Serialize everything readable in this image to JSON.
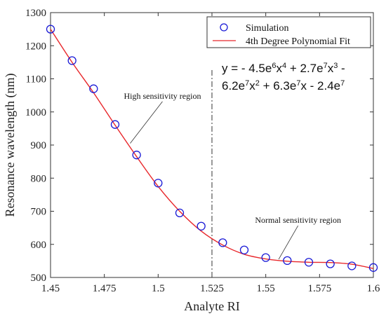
{
  "chart_data": {
    "type": "scatter",
    "xlabel": "Analyte RI",
    "ylabel": "Resonance wavelength (nm)",
    "xlim": [
      1.45,
      1.6
    ],
    "ylim": [
      500,
      1300
    ],
    "x_ticks": [
      1.45,
      1.475,
      1.5,
      1.525,
      1.55,
      1.575,
      1.6
    ],
    "x_tick_labels": [
      "1.45",
      "1.475",
      "1.5",
      "1.525",
      "1.55",
      "1.575",
      "1.6"
    ],
    "y_ticks": [
      500,
      600,
      700,
      800,
      900,
      1000,
      1100,
      1200,
      1300
    ],
    "y_tick_labels": [
      "500",
      "600",
      "700",
      "800",
      "900",
      "1000",
      "1100",
      "1200",
      "1300"
    ],
    "grid": false,
    "legend_position": "top-right",
    "series": [
      {
        "name": "Simulation",
        "kind": "scatter",
        "marker": "circle-open",
        "color": "#1a1ad6",
        "x": [
          1.45,
          1.46,
          1.47,
          1.48,
          1.49,
          1.5,
          1.51,
          1.52,
          1.53,
          1.54,
          1.55,
          1.56,
          1.57,
          1.58,
          1.59,
          1.6
        ],
        "y": [
          1250,
          1155,
          1070,
          962,
          870,
          785,
          695,
          655,
          605,
          583,
          560,
          551,
          546,
          541,
          535,
          530
        ]
      },
      {
        "name": "4th Degree Polynomial Fit",
        "kind": "line",
        "color": "#e8262a",
        "x": [
          1.45,
          1.46,
          1.47,
          1.48,
          1.49,
          1.5,
          1.51,
          1.52,
          1.53,
          1.54,
          1.55,
          1.56,
          1.57,
          1.58,
          1.59,
          1.6
        ],
        "y": [
          1250,
          1150,
          1058,
          960,
          865,
          775,
          700,
          640,
          598,
          570,
          556,
          549,
          546,
          545,
          540,
          527
        ]
      }
    ],
    "divider": {
      "x": 1.525,
      "style": "dash-dot",
      "color": "#333333"
    },
    "equation": {
      "line1": [
        {
          "t": "y = - 4.5e"
        },
        {
          "t": "6",
          "sup": true
        },
        {
          "t": "x"
        },
        {
          "t": "4",
          "sup": true
        },
        {
          "t": " + 2.7e"
        },
        {
          "t": "7",
          "sup": true
        },
        {
          "t": "x"
        },
        {
          "t": "3",
          "sup": true
        },
        {
          "t": " -"
        }
      ],
      "line2": [
        {
          "t": "6.2e"
        },
        {
          "t": "7",
          "sup": true
        },
        {
          "t": "x"
        },
        {
          "t": "2",
          "sup": true
        },
        {
          "t": " + 6.3e"
        },
        {
          "t": "7",
          "sup": true
        },
        {
          "t": "x - 2.4e"
        },
        {
          "t": "7",
          "sup": true
        }
      ]
    },
    "annotations": [
      {
        "text": "High sensitivity region",
        "text_x": 1.502,
        "text_y": 1040,
        "point_x": 1.487,
        "point_y": 905
      },
      {
        "text": "Normal sensitivity region",
        "text_x": 1.565,
        "text_y": 665,
        "point_x": 1.556,
        "point_y": 555
      }
    ]
  }
}
